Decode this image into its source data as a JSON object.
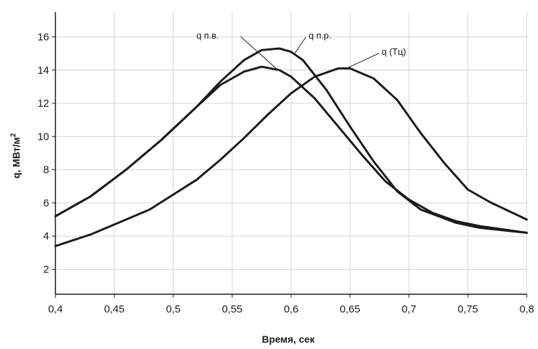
{
  "chart_data": {
    "type": "line",
    "xlabel": "Время, сек",
    "ylabel": "q, МВт/м",
    "ylabel_sup": "2",
    "xlim": [
      0.4,
      0.8
    ],
    "ylim": [
      0.5,
      17.5
    ],
    "x_ticks": [
      0.4,
      0.45,
      0.5,
      0.55,
      0.6,
      0.65,
      0.7,
      0.75,
      0.8
    ],
    "x_tick_labels": [
      "0,4",
      "0,45",
      "0,5",
      "0,55",
      "0,6",
      "0,65",
      "0,7",
      "0,75",
      "0,8"
    ],
    "y_ticks": [
      2,
      4,
      6,
      8,
      10,
      12,
      14,
      16
    ],
    "y_tick_labels": [
      "2",
      "4",
      "6",
      "8",
      "10",
      "12",
      "14",
      "16"
    ],
    "grid": true,
    "legend": "inline labels",
    "series": [
      {
        "name": "q п.в.",
        "x": [
          0.4,
          0.43,
          0.46,
          0.49,
          0.52,
          0.54,
          0.56,
          0.575,
          0.59,
          0.6,
          0.62,
          0.64,
          0.66,
          0.68,
          0.7,
          0.72,
          0.74,
          0.76,
          0.8
        ],
        "y": [
          5.2,
          6.4,
          8.0,
          9.8,
          11.8,
          13.1,
          13.9,
          14.2,
          14.0,
          13.6,
          12.3,
          10.6,
          8.9,
          7.3,
          6.2,
          5.4,
          4.9,
          4.6,
          4.2
        ]
      },
      {
        "name": "q п.р.",
        "x": [
          0.4,
          0.43,
          0.46,
          0.49,
          0.52,
          0.54,
          0.56,
          0.575,
          0.59,
          0.6,
          0.61,
          0.63,
          0.65,
          0.67,
          0.69,
          0.71,
          0.74,
          0.76,
          0.8
        ],
        "y": [
          5.2,
          6.4,
          8.0,
          9.8,
          11.8,
          13.3,
          14.6,
          15.2,
          15.3,
          15.1,
          14.6,
          12.8,
          10.6,
          8.5,
          6.7,
          5.6,
          4.8,
          4.5,
          4.2
        ]
      },
      {
        "name": "q (Тц)",
        "x": [
          0.4,
          0.43,
          0.46,
          0.48,
          0.5,
          0.52,
          0.54,
          0.56,
          0.58,
          0.6,
          0.62,
          0.64,
          0.65,
          0.67,
          0.69,
          0.71,
          0.73,
          0.75,
          0.77,
          0.8
        ],
        "y": [
          3.4,
          4.1,
          5.0,
          5.6,
          6.5,
          7.4,
          8.6,
          9.9,
          11.3,
          12.6,
          13.6,
          14.1,
          14.1,
          13.5,
          12.2,
          10.2,
          8.4,
          6.8,
          6.0,
          5.0
        ]
      }
    ]
  }
}
